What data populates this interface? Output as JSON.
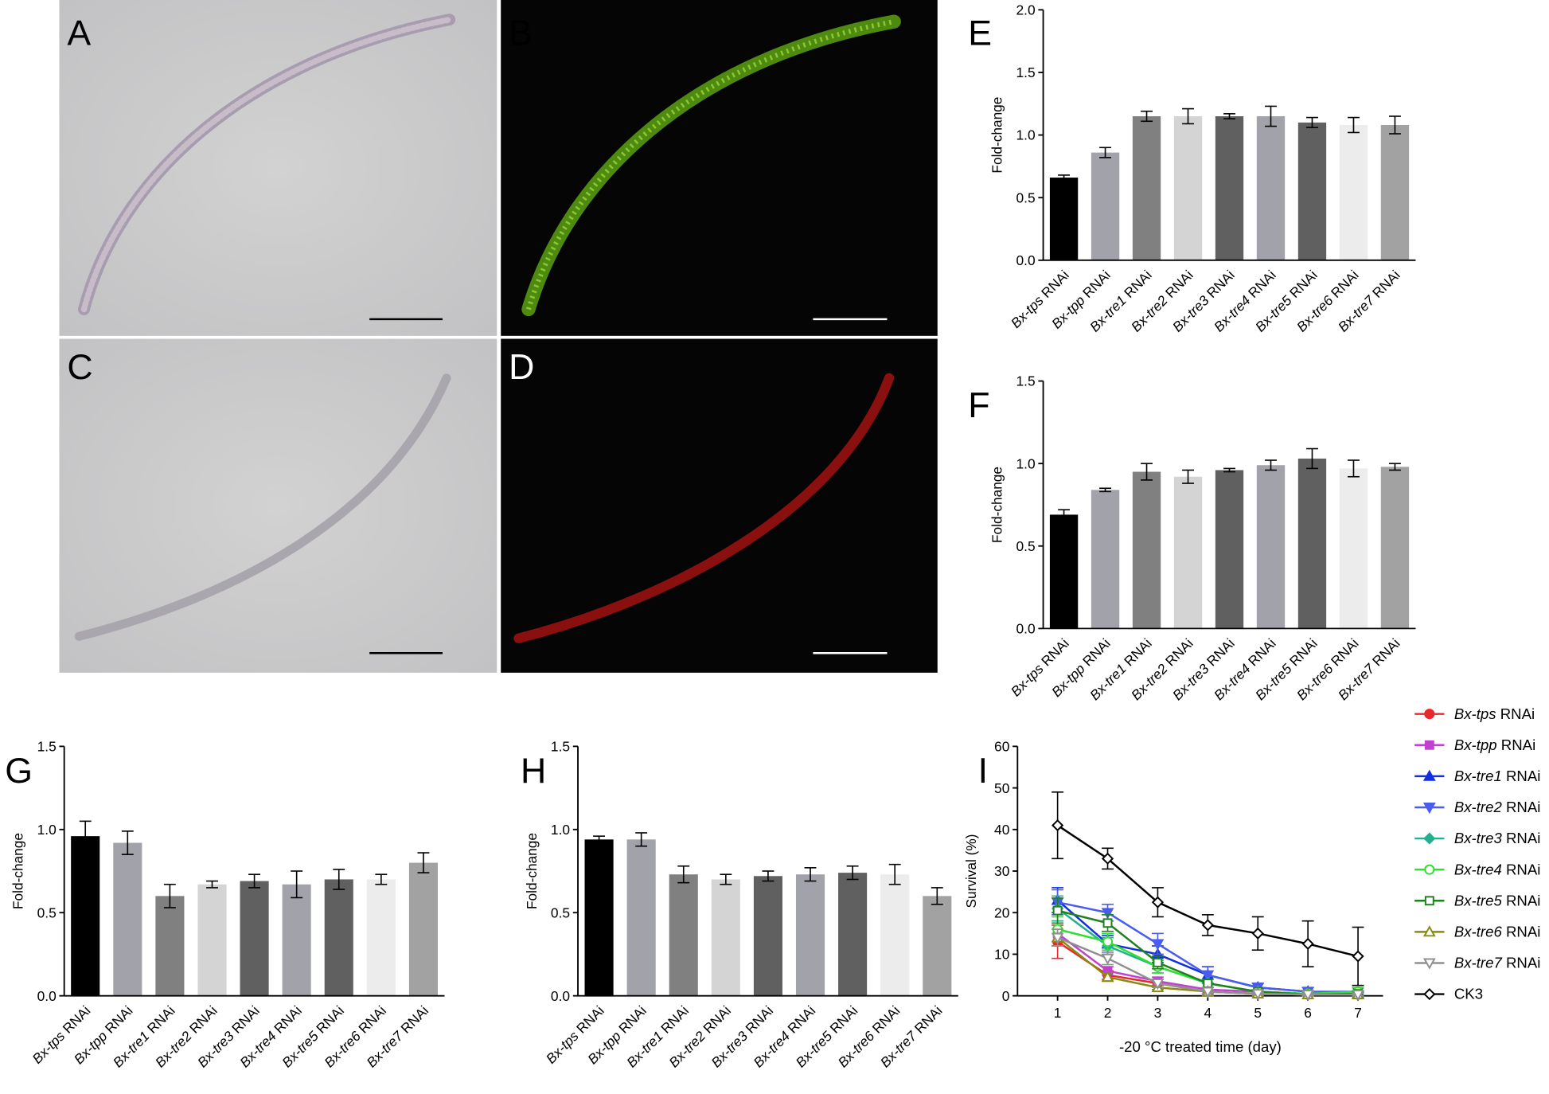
{
  "images": [
    {
      "label": "A"
    },
    {
      "label": "B"
    },
    {
      "label": "C"
    },
    {
      "label": "D"
    }
  ],
  "chart_data": [
    {
      "type": "bar",
      "label": "E",
      "ylabel": "Fold-change",
      "categories": [
        "Bx-tps RNAi",
        "Bx-tpp RNAi",
        "Bx-tre1 RNAi",
        "Bx-tre2 RNAi",
        "Bx-tre3 RNAi",
        "Bx-tre4 RNAi",
        "Bx-tre5 RNAi",
        "Bx-tre6 RNAi",
        "Bx-tre7 RNAi"
      ],
      "values": [
        0.66,
        0.86,
        1.15,
        1.15,
        1.15,
        1.15,
        1.1,
        1.08,
        1.08
      ],
      "errors": [
        0.02,
        0.04,
        0.04,
        0.06,
        0.02,
        0.08,
        0.04,
        0.06,
        0.07
      ],
      "colors": [
        "#000000",
        "#a2a2aa",
        "#808080",
        "#d4d4d4",
        "#606060",
        "#a2a2aa",
        "#606060",
        "#ececec",
        "#a2a2a2"
      ],
      "ylim": [
        0,
        2
      ],
      "yticks": [
        {
          "value": 0,
          "label": "0.0"
        },
        0.5,
        {
          "value": 1,
          "label": "1.0"
        },
        1.5,
        {
          "value": 2,
          "label": "2.0"
        }
      ]
    },
    {
      "type": "bar",
      "label": "F",
      "ylabel": "Fold-change",
      "categories": [
        "Bx-tps RNAi",
        "Bx-tpp RNAi",
        "Bx-tre1 RNAi",
        "Bx-tre2 RNAi",
        "Bx-tre3 RNAi",
        "Bx-tre4 RNAi",
        "Bx-tre5 RNAi",
        "Bx-tre6 RNAi",
        "Bx-tre7 RNAi"
      ],
      "values": [
        0.69,
        0.84,
        0.95,
        0.92,
        0.96,
        0.99,
        1.03,
        0.97,
        0.98
      ],
      "errors": [
        0.03,
        0.01,
        0.05,
        0.04,
        0.01,
        0.03,
        0.06,
        0.05,
        0.02
      ],
      "colors": [
        "#000000",
        "#a2a2aa",
        "#808080",
        "#d4d4d4",
        "#606060",
        "#a2a2aa",
        "#606060",
        "#ececec",
        "#a2a2a2"
      ],
      "ylim": [
        0,
        1.5
      ],
      "yticks": [
        {
          "value": 0,
          "label": "0.0"
        },
        0.5,
        {
          "value": 1,
          "label": "1.0"
        },
        1.5
      ]
    },
    {
      "type": "bar",
      "label": "G",
      "ylabel": "Fold-change",
      "categories": [
        "Bx-tps RNAi",
        "Bx-tpp RNAi",
        "Bx-tre1 RNAi",
        "Bx-tre2 RNAi",
        "Bx-tre3 RNAi",
        "Bx-tre4 RNAi",
        "Bx-tre5 RNAi",
        "Bx-tre6 RNAi",
        "Bx-tre7 RNAi"
      ],
      "values": [
        0.96,
        0.92,
        0.6,
        0.67,
        0.69,
        0.67,
        0.7,
        0.7,
        0.8
      ],
      "errors": [
        0.09,
        0.07,
        0.07,
        0.02,
        0.04,
        0.08,
        0.06,
        0.03,
        0.06
      ],
      "colors": [
        "#000000",
        "#a2a2aa",
        "#808080",
        "#d4d4d4",
        "#606060",
        "#a2a2aa",
        "#606060",
        "#ececec",
        "#a2a2a2"
      ],
      "ylim": [
        0,
        1.5
      ],
      "yticks": [
        {
          "value": 0,
          "label": "0.0"
        },
        0.5,
        {
          "value": 1,
          "label": "1.0"
        },
        1.5
      ]
    },
    {
      "type": "bar",
      "label": "H",
      "ylabel": "Fold-change",
      "categories": [
        "Bx-tps RNAi",
        "Bx-tpp RNAi",
        "Bx-tre1 RNAi",
        "Bx-tre2 RNAi",
        "Bx-tre3 RNAi",
        "Bx-tre4 RNAi",
        "Bx-tre5 RNAi",
        "Bx-tre6 RNAi",
        "Bx-tre7 RNAi"
      ],
      "values": [
        0.94,
        0.94,
        0.73,
        0.7,
        0.72,
        0.73,
        0.74,
        0.73,
        0.6
      ],
      "errors": [
        0.02,
        0.04,
        0.05,
        0.03,
        0.03,
        0.04,
        0.04,
        0.06,
        0.05
      ],
      "colors": [
        "#000000",
        "#a2a2aa",
        "#808080",
        "#d4d4d4",
        "#606060",
        "#a2a2aa",
        "#606060",
        "#ececec",
        "#a2a2a2"
      ],
      "ylim": [
        0,
        1.5
      ],
      "yticks": [
        {
          "value": 0,
          "label": "0.0"
        },
        0.5,
        {
          "value": 1,
          "label": "1.0"
        },
        1.5
      ]
    },
    {
      "type": "line",
      "label": "I",
      "ylabel": "Survival (%)",
      "xlabel": "-20 °C treated time (day)",
      "x": [
        1,
        2,
        3,
        4,
        5,
        6,
        7
      ],
      "xlim": [
        0.2,
        7.5
      ],
      "xticks": [
        1,
        2,
        3,
        4,
        5,
        6,
        7
      ],
      "ylim": [
        0,
        60
      ],
      "yticks": [
        0,
        10,
        20,
        30,
        40,
        50,
        60
      ],
      "series": [
        {
          "name": "Bx-tps RNAi",
          "color": "#e8282a",
          "marker": "circle",
          "values": [
            13,
            5,
            3,
            1,
            0.5,
            0.3,
            0.3
          ],
          "errors": [
            4,
            1,
            1,
            0.5,
            0.5,
            0.3,
            0.3
          ]
        },
        {
          "name": "Bx-tpp RNAi",
          "color": "#c040d0",
          "marker": "square",
          "values": [
            15,
            6,
            3.5,
            1.5,
            1,
            0.5,
            0.5
          ],
          "errors": [
            3,
            1,
            1,
            0.5,
            0.5,
            0.3,
            0.3
          ]
        },
        {
          "name": "Bx-tre1 RNAi",
          "color": "#1030e0",
          "marker": "triangle",
          "values": [
            23,
            12.5,
            10,
            5,
            2,
            1,
            0.5
          ],
          "errors": [
            3,
            2,
            2,
            2,
            1,
            1,
            0.5
          ]
        },
        {
          "name": "Bx-tre2 RNAi",
          "color": "#4a5cf0",
          "marker": "down",
          "values": [
            22.5,
            20,
            12.5,
            5,
            2,
            1,
            1
          ],
          "errors": [
            3,
            2,
            2.5,
            2,
            1,
            1,
            1
          ]
        },
        {
          "name": "Bx-tre3 RNAi",
          "color": "#20b090",
          "marker": "diamond",
          "values": [
            21,
            12,
            7,
            3,
            1,
            0.5,
            0.5
          ],
          "errors": [
            3,
            2,
            1.5,
            1,
            0.5,
            0.5,
            0.5
          ]
        },
        {
          "name": "Bx-tre4 RNAi",
          "color": "#30e030",
          "marker": "open-circle",
          "values": [
            16,
            13,
            7,
            3,
            1,
            0.5,
            1
          ],
          "errors": [
            3,
            2,
            1.5,
            1,
            0.5,
            0.5,
            1
          ]
        },
        {
          "name": "Bx-tre5 RNAi",
          "color": "#208020",
          "marker": "open-square",
          "values": [
            20.5,
            17.5,
            8,
            3,
            1,
            0.3,
            0.5
          ],
          "errors": [
            3,
            2,
            1.5,
            1,
            0.5,
            0.3,
            0.5
          ]
        },
        {
          "name": "Bx-tre6 RNAi",
          "color": "#8a8a10",
          "marker": "open-triangle",
          "values": [
            14,
            4.5,
            2,
            1,
            0.5,
            0.3,
            0.3
          ],
          "errors": [
            2,
            1,
            0.5,
            0.5,
            0.3,
            0.3,
            0.3
          ]
        },
        {
          "name": "Bx-tre7 RNAi",
          "color": "#909090",
          "marker": "open-down",
          "values": [
            14,
            9,
            3,
            1,
            0.5,
            0.3,
            0.3
          ],
          "errors": [
            2,
            1.5,
            1,
            0.5,
            0.3,
            0.3,
            0.3
          ]
        },
        {
          "name": "CK3",
          "color": "#000000",
          "marker": "open-diamond",
          "values": [
            41,
            33,
            22.5,
            17,
            15,
            12.5,
            9.5
          ],
          "errors": [
            8,
            2.5,
            3.5,
            2.5,
            4,
            5.5,
            7
          ]
        }
      ]
    }
  ]
}
